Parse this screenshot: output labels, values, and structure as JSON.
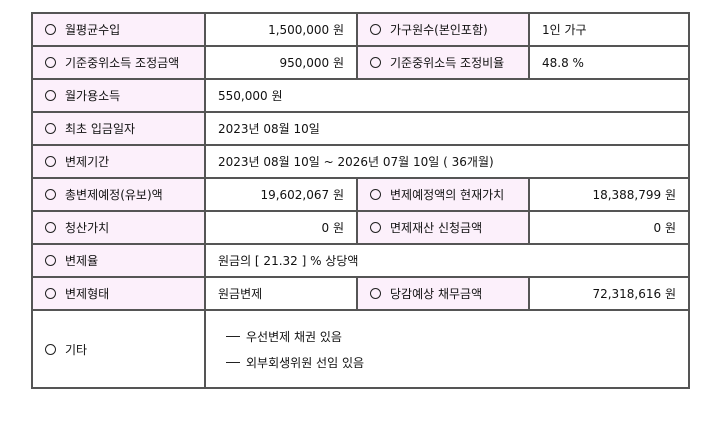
{
  "rows": {
    "monthly_income": {
      "label": "월평균수입",
      "value": "1,500,000 원"
    },
    "household": {
      "label": "가구원수(본인포함)",
      "value": "1인 가구"
    },
    "median_adjusted_amount": {
      "label": "기준중위소득 조정금액",
      "value": "950,000 원"
    },
    "median_adjusted_ratio": {
      "label": "기준중위소득 조정비율",
      "value": "48.8 %"
    },
    "disposable_income": {
      "label": "월가용소득",
      "value": "550,000 원"
    },
    "first_payment_date": {
      "label": "최초 입금일자",
      "value": "2023년 08월 10일"
    },
    "repayment_period": {
      "label": "변제기간",
      "value": "2023년 08월 10일 ~ 2026년 07월 10일 ( 36개월)"
    },
    "total_repayment": {
      "label": "총변제예정(유보)액",
      "value": "19,602,067 원"
    },
    "present_value": {
      "label": "변제예정액의 현재가치",
      "value": "18,388,799 원"
    },
    "liquidation_value": {
      "label": "청산가치",
      "value": "0 원"
    },
    "exempt_property": {
      "label": "면제재산 신청금액",
      "value": "0 원"
    },
    "repayment_rate": {
      "label": "변제율",
      "value": "원금의 [ 21.32 ] % 상당액"
    },
    "repayment_type": {
      "label": "변제형태",
      "value": "원금변제"
    },
    "expected_debt": {
      "label": "당감예상 채무금액",
      "value": "72,318,616 원"
    },
    "other": {
      "label": "기타",
      "items": [
        "우선변제 채권 있음",
        "외부회생위원 선임 있음"
      ]
    }
  },
  "colors": {
    "label_bg": "#fcf0fb",
    "border": "#555555"
  }
}
